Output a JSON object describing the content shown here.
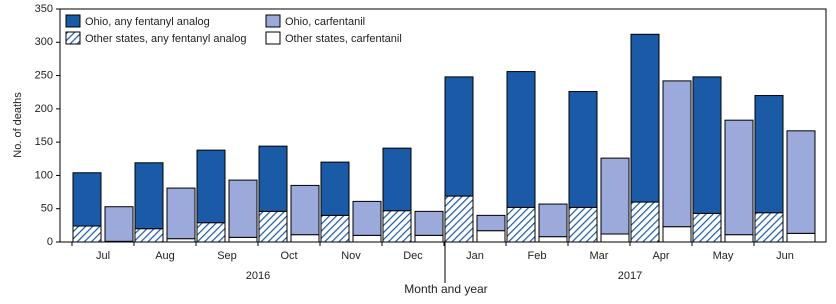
{
  "chart_data": {
    "type": "bar",
    "stacked": true,
    "y_label": "No. of deaths",
    "x_label": "Month and year",
    "categories": [
      "Jul",
      "Aug",
      "Sep",
      "Oct",
      "Nov",
      "Dec",
      "Jan",
      "Feb",
      "Mar",
      "Apr",
      "May",
      "Jun"
    ],
    "year_groups": [
      {
        "label": "2016",
        "count": 6
      },
      {
        "label": "2017",
        "count": 6
      }
    ],
    "series": [
      {
        "name": "Other states, any fentanyl analog",
        "stack": "analog",
        "color": "#1a5aa6",
        "pattern": "hatch",
        "values": [
          24,
          20,
          29,
          46,
          40,
          47,
          69,
          52,
          52,
          60,
          43,
          44
        ]
      },
      {
        "name": "Ohio, any fentanyl analog",
        "stack": "analog",
        "color": "#1a5aa6",
        "pattern": "solid",
        "values": [
          80,
          99,
          109,
          98,
          80,
          94,
          179,
          204,
          174,
          252,
          205,
          176
        ]
      },
      {
        "name": "Other states, carfentanil",
        "stack": "carfentanil",
        "color": "#ffffff",
        "pattern": "solid",
        "values": [
          1,
          5,
          7,
          11,
          10,
          10,
          17,
          8,
          12,
          23,
          11,
          13
        ]
      },
      {
        "name": "Ohio, carfentanil",
        "stack": "carfentanil",
        "color": "#9ba9db",
        "pattern": "solid",
        "values": [
          52,
          76,
          86,
          74,
          51,
          36,
          23,
          49,
          114,
          219,
          172,
          154
        ]
      }
    ],
    "legend_order": [
      1,
      3,
      0,
      2
    ],
    "ylim": [
      0,
      350
    ],
    "yticks": [
      0,
      50,
      100,
      150,
      200,
      250,
      300,
      350
    ]
  }
}
